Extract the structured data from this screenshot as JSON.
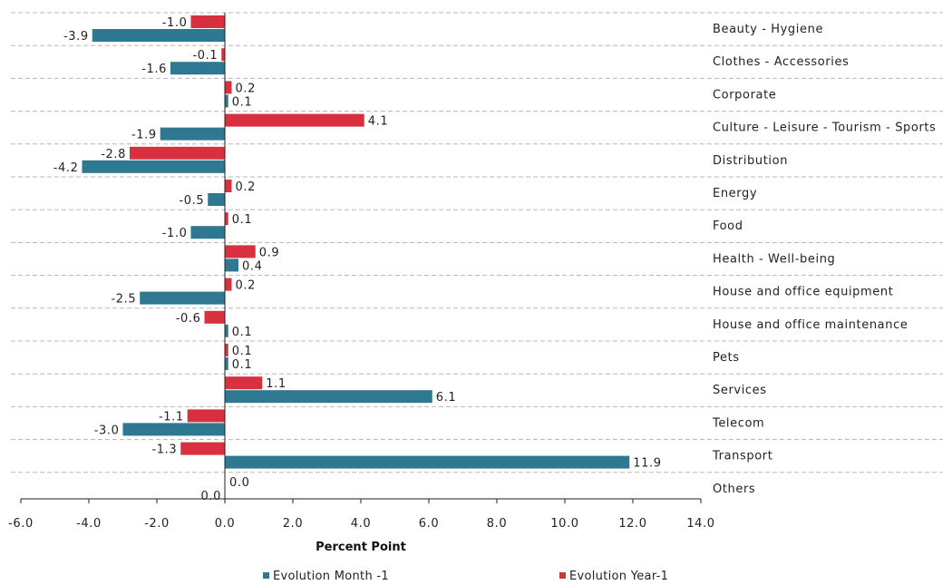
{
  "chart_data": {
    "type": "bar",
    "orientation": "horizontal",
    "categories": [
      "Beauty - Hygiene",
      "Clothes - Accessories",
      "Corporate",
      "Culture - Leisure - Tourism - Sports",
      "Distribution",
      "Energy",
      "Food",
      "Health - Well-being",
      "House and office equipment",
      "House and office maintenance",
      "Pets",
      "Services",
      "Telecom",
      "Transport",
      "Others"
    ],
    "series": [
      {
        "name": "Evolution Year-1",
        "color": "#d8303f",
        "values": [
          -1.0,
          -0.1,
          0.2,
          4.1,
          -2.8,
          0.2,
          0.1,
          0.9,
          0.2,
          -0.6,
          0.1,
          1.1,
          -1.1,
          -1.3,
          0.0
        ],
        "labels": [
          "-1.0",
          "-0.1",
          "0.2",
          "4.1",
          "-2.8",
          "0.2",
          "0.1",
          "0.9",
          "0.2",
          "-0.6",
          "0.1",
          "1.1",
          "-1.1",
          "-1.3",
          "0.0"
        ]
      },
      {
        "name": "Evolution Month -1",
        "color": "#2e7891",
        "values": [
          -3.9,
          -1.6,
          0.1,
          -1.9,
          -4.2,
          -0.5,
          -1.0,
          0.4,
          -2.5,
          0.1,
          0.1,
          6.1,
          -3.0,
          11.9,
          0.0
        ],
        "labels": [
          "-3.9",
          "-1.6",
          "0.1",
          "-1.9",
          "-4.2",
          "-0.5",
          "-1.0",
          "0.4",
          "-2.5",
          "0.1",
          "0.1",
          "6.1",
          "-3.0",
          "11.9",
          "0.0"
        ]
      }
    ],
    "legend_order": [
      "Evolution Month -1",
      "Evolution Year-1"
    ],
    "xlabel": "Percent Point",
    "xlim": [
      -6.0,
      14.0
    ],
    "xticks": [
      -6.0,
      -4.0,
      -2.0,
      0.0,
      2.0,
      4.0,
      6.0,
      8.0,
      10.0,
      12.0,
      14.0
    ],
    "xtick_labels": [
      "-6.0",
      "-4.0",
      "-2.0",
      "0.0",
      "2.0",
      "4.0",
      "6.0",
      "8.0",
      "10.0",
      "12.0",
      "14.0"
    ],
    "grid": "horizontal dashed separators between categories",
    "legend_position": "bottom"
  }
}
